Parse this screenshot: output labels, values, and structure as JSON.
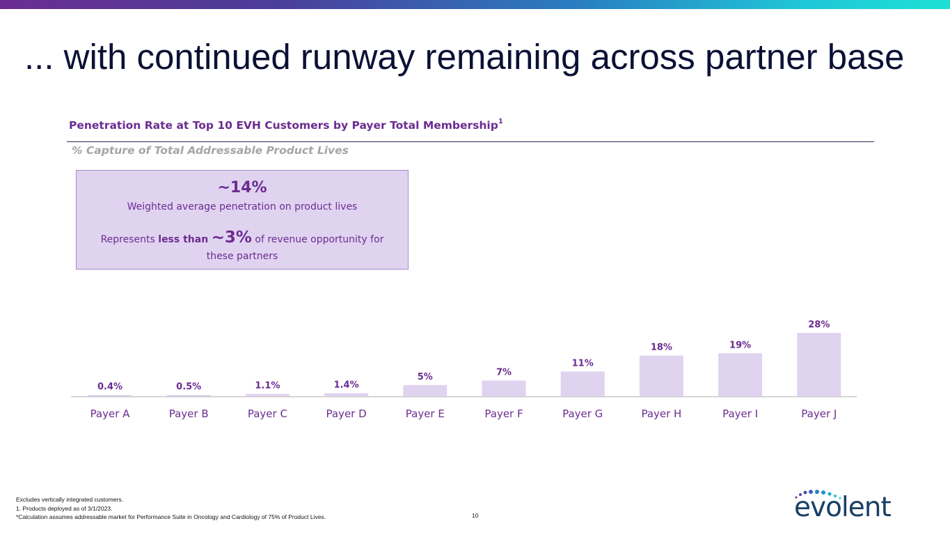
{
  "title": "... with continued runway remaining across partner base",
  "chart_data": {
    "type": "bar",
    "title": "Penetration Rate at Top 10 EVH Customers by Payer Total Membership",
    "title_superscript": "1",
    "subtitle": "% Capture of Total Addressable Product Lives",
    "categories": [
      "Payer A",
      "Payer B",
      "Payer C",
      "Payer D",
      "Payer E",
      "Payer F",
      "Payer G",
      "Payer H",
      "Payer I",
      "Payer J"
    ],
    "values": [
      0.4,
      0.5,
      1.1,
      1.4,
      5,
      7,
      11,
      18,
      19,
      28
    ],
    "data_labels": [
      "0.4%",
      "0.5%",
      "1.1%",
      "1.4%",
      "5%",
      "7%",
      "11%",
      "18%",
      "19%",
      "28%"
    ],
    "ylim": [
      0,
      28
    ],
    "xlabel": "",
    "ylabel": "",
    "bar_color": "#e0d3f0",
    "label_color": "#6b2c91"
  },
  "callout": {
    "headline": "~14%",
    "headline_text": "Weighted average penetration on product lives",
    "line_prefix": "Represents ",
    "line_bold": "less than",
    "line_value": "~3%",
    "line_suffix": " of revenue opportunity for these partners"
  },
  "footnotes": [
    "Excludes vertically integrated customers.",
    "1. Products deployed as of 3/1/2023.",
    "*Calculation assumes addressable market for Performance Suite in Oncology and Cardiology of 75% of Product Lives."
  ],
  "page_number": "10",
  "logo": {
    "wordmark": "evolent"
  }
}
